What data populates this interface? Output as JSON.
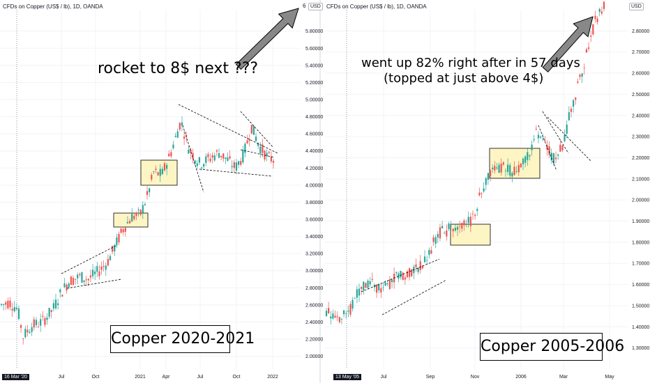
{
  "colors": {
    "up": "#26a69a",
    "down": "#ef5350",
    "highlight": "#fdf5c4",
    "arrow": "#888888",
    "grid": "#f0f3fa"
  },
  "chart_data": [
    {
      "type": "candlestick",
      "title": "CFDs on Copper (US$ / lb), 1D, OANDA",
      "currency_badge": "USD",
      "axis_top_label": "6",
      "ylim": [
        1.85,
        6.05
      ],
      "y_ticks": [
        "5.80000",
        "5.60000",
        "5.40000",
        "5.20000",
        "5.00000",
        "4.80000",
        "4.60000",
        "4.40000",
        "4.20000",
        "4.00000",
        "3.80000",
        "3.60000",
        "3.40000",
        "3.20000",
        "3.00000",
        "2.80000",
        "2.60000",
        "2.40000",
        "2.20000",
        "2.00000"
      ],
      "x_ticks": [
        "Jul",
        "Oct",
        "2021",
        "Apr",
        "Jul",
        "Oct",
        "2022"
      ],
      "start_tag": "16 Mar '20",
      "annotation": "rocket to 8$ next ???",
      "label_box": "Copper 2020-2021",
      "price_path": [
        [
          0,
          2.6
        ],
        [
          0.03,
          2.63
        ],
        [
          0.06,
          2.55
        ],
        [
          0.08,
          2.23
        ],
        [
          0.11,
          2.35
        ],
        [
          0.15,
          2.4
        ],
        [
          0.19,
          2.55
        ],
        [
          0.22,
          2.75
        ],
        [
          0.25,
          2.88
        ],
        [
          0.29,
          2.93
        ],
        [
          0.32,
          2.9
        ],
        [
          0.36,
          3.0
        ],
        [
          0.39,
          3.1
        ],
        [
          0.42,
          3.3
        ],
        [
          0.45,
          3.5
        ],
        [
          0.48,
          3.63
        ],
        [
          0.51,
          3.65
        ],
        [
          0.54,
          3.9
        ],
        [
          0.56,
          4.15
        ],
        [
          0.59,
          4.12
        ],
        [
          0.62,
          4.35
        ],
        [
          0.64,
          4.55
        ],
        [
          0.66,
          4.75
        ],
        [
          0.69,
          4.42
        ],
        [
          0.73,
          4.25
        ],
        [
          0.77,
          4.32
        ],
        [
          0.8,
          4.38
        ],
        [
          0.83,
          4.3
        ],
        [
          0.86,
          4.2
        ],
        [
          0.89,
          4.35
        ],
        [
          0.92,
          4.68
        ],
        [
          0.95,
          4.45
        ],
        [
          0.98,
          4.32
        ],
        [
          1.0,
          4.3
        ]
      ]
    },
    {
      "type": "candlestick",
      "title": "CFDs on Copper (US$ / lb), 1D, OANDA",
      "currency_badge": "USD",
      "ylim": [
        1.2,
        2.9
      ],
      "y_ticks": [
        "2.80000",
        "2.70000",
        "2.60000",
        "2.50000",
        "2.40000",
        "2.30000",
        "2.20000",
        "2.10000",
        "2.00000",
        "1.90000",
        "1.80000",
        "1.70000",
        "1.60000",
        "1.50000",
        "1.40000",
        "1.30000"
      ],
      "x_ticks": [
        "Jul",
        "Sep",
        "Nov",
        "2006",
        "Mar",
        "May"
      ],
      "start_tag": "13 May '05",
      "annotation_line1": "went up 82% right after in 57 days",
      "annotation_line2": "(topped at just above 4$)",
      "label_box": "Copper 2005-2006",
      "price_path": [
        [
          0,
          1.48
        ],
        [
          0.04,
          1.45
        ],
        [
          0.08,
          1.46
        ],
        [
          0.12,
          1.58
        ],
        [
          0.16,
          1.6
        ],
        [
          0.2,
          1.57
        ],
        [
          0.24,
          1.62
        ],
        [
          0.28,
          1.65
        ],
        [
          0.32,
          1.68
        ],
        [
          0.35,
          1.7
        ],
        [
          0.38,
          1.78
        ],
        [
          0.41,
          1.85
        ],
        [
          0.44,
          1.86
        ],
        [
          0.48,
          1.87
        ],
        [
          0.52,
          1.9
        ],
        [
          0.55,
          2.0
        ],
        [
          0.58,
          2.12
        ],
        [
          0.61,
          2.16
        ],
        [
          0.64,
          2.15
        ],
        [
          0.67,
          2.14
        ],
        [
          0.7,
          2.15
        ],
        [
          0.73,
          2.22
        ],
        [
          0.76,
          2.32
        ],
        [
          0.79,
          2.25
        ],
        [
          0.82,
          2.2
        ],
        [
          0.85,
          2.25
        ],
        [
          0.88,
          2.42
        ],
        [
          0.91,
          2.55
        ],
        [
          0.94,
          2.7
        ],
        [
          0.97,
          2.85
        ],
        [
          1.0,
          2.92
        ]
      ]
    }
  ]
}
